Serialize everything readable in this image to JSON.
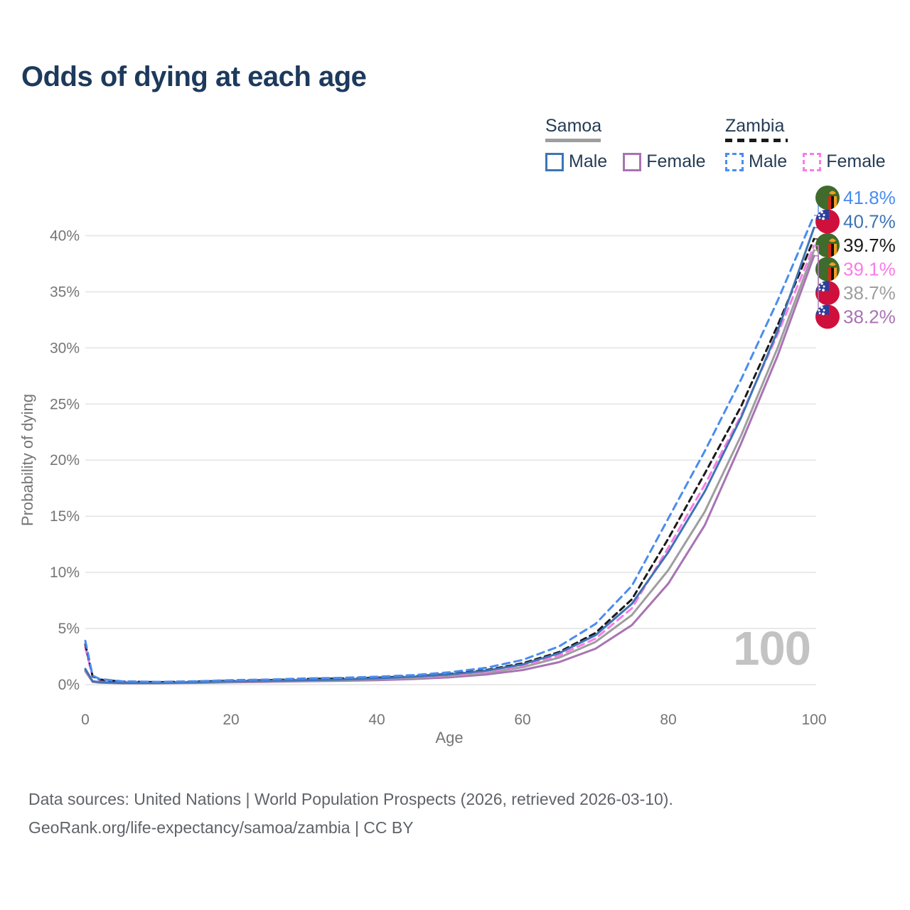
{
  "title": "Odds of dying at each age",
  "watermark": "100",
  "legend": {
    "groups": [
      {
        "country": "Samoa",
        "line_style": "solid",
        "color": "#9e9e9e",
        "items": [
          {
            "label": "Male",
            "color": "#3e74b4"
          },
          {
            "label": "Female",
            "color": "#a873b4"
          }
        ]
      },
      {
        "country": "Zambia",
        "line_style": "dashed",
        "color": "#1a1a1a",
        "items": [
          {
            "label": "Male",
            "color": "#4a8cf0"
          },
          {
            "label": "Female",
            "color": "#f97ce8"
          }
        ]
      }
    ]
  },
  "axes": {
    "y_title": "Probability of dying",
    "x_title": "Age"
  },
  "flag_colors": {
    "samoa_red": "#d0103c",
    "samoa_blue": "#2b3f9d",
    "zambia_green": "#3f6b2c",
    "zambia_red": "#de2910",
    "zambia_black": "#101010",
    "zambia_orange": "#f59d1e"
  },
  "chart_data": {
    "type": "line",
    "title": "Odds of dying at each age",
    "xlabel": "Age",
    "ylabel": "Probability of dying",
    "xlim": [
      0,
      100
    ],
    "ylim_percent": [
      0,
      44
    ],
    "x_ticks": [
      0,
      20,
      40,
      60,
      80,
      100
    ],
    "y_ticks_percent": [
      0,
      5,
      10,
      15,
      20,
      25,
      30,
      35,
      40
    ],
    "y_tick_format": "{v}%",
    "grid": "horizontal",
    "legend_position": "top-right",
    "x": [
      0,
      1,
      2,
      5,
      10,
      15,
      20,
      25,
      30,
      35,
      40,
      45,
      50,
      55,
      60,
      65,
      70,
      75,
      80,
      85,
      90,
      95,
      100
    ],
    "series": [
      {
        "id": "zambia-male",
        "country": "Zambia",
        "sex": "Male",
        "color": "#4a8cf0",
        "dash": true,
        "end_label": "41.8%",
        "values": [
          3.9,
          0.8,
          0.5,
          0.3,
          0.25,
          0.3,
          0.4,
          0.45,
          0.55,
          0.6,
          0.7,
          0.85,
          1.1,
          1.5,
          2.2,
          3.4,
          5.4,
          8.8,
          14.8,
          20.8,
          27.2,
          34.2,
          41.8
        ]
      },
      {
        "id": "samoa-male",
        "country": "Samoa",
        "sex": "Male",
        "color": "#3e74b4",
        "dash": false,
        "end_label": "40.7%",
        "values": [
          1.4,
          0.3,
          0.22,
          0.15,
          0.15,
          0.2,
          0.3,
          0.35,
          0.4,
          0.45,
          0.55,
          0.7,
          0.9,
          1.25,
          1.8,
          2.8,
          4.4,
          7.2,
          11.8,
          17.2,
          23.8,
          31.5,
          40.7
        ]
      },
      {
        "id": "zambia-total",
        "country": "Zambia",
        "sex": "Both",
        "color": "#1a1a1a",
        "dash": true,
        "end_label": "39.7%",
        "values": [
          3.6,
          0.75,
          0.45,
          0.28,
          0.22,
          0.27,
          0.35,
          0.4,
          0.5,
          0.55,
          0.62,
          0.75,
          0.95,
          1.3,
          1.9,
          2.9,
          4.6,
          7.6,
          13.0,
          18.8,
          24.8,
          32.0,
          39.7
        ]
      },
      {
        "id": "zambia-female",
        "country": "Zambia",
        "sex": "Female",
        "color": "#f97ce8",
        "dash": true,
        "end_label": "39.1%",
        "values": [
          3.3,
          0.7,
          0.42,
          0.26,
          0.2,
          0.25,
          0.3,
          0.36,
          0.44,
          0.5,
          0.56,
          0.68,
          0.85,
          1.15,
          1.7,
          2.6,
          4.1,
          6.8,
          12.2,
          17.8,
          24.0,
          31.2,
          39.1
        ]
      },
      {
        "id": "samoa-total",
        "country": "Samoa",
        "sex": "Both",
        "color": "#9e9e9e",
        "dash": false,
        "end_label": "38.7%",
        "values": [
          1.3,
          0.28,
          0.2,
          0.14,
          0.13,
          0.17,
          0.25,
          0.3,
          0.34,
          0.4,
          0.48,
          0.6,
          0.78,
          1.05,
          1.55,
          2.4,
          3.8,
          6.2,
          10.2,
          15.4,
          22.2,
          30.0,
          38.7
        ]
      },
      {
        "id": "samoa-female",
        "country": "Samoa",
        "sex": "Female",
        "color": "#a873b4",
        "dash": false,
        "end_label": "38.2%",
        "values": [
          1.2,
          0.25,
          0.18,
          0.12,
          0.12,
          0.15,
          0.2,
          0.25,
          0.3,
          0.34,
          0.4,
          0.5,
          0.65,
          0.9,
          1.3,
          2.0,
          3.2,
          5.3,
          9.0,
          14.2,
          21.5,
          29.3,
          38.2
        ]
      }
    ]
  },
  "footer": {
    "line1": "Data sources: United Nations | World Population Prospects (2026, retrieved 2026-03-10).",
    "line2": "GeoRank.org/life-expectancy/samoa/zambia | CC BY"
  }
}
